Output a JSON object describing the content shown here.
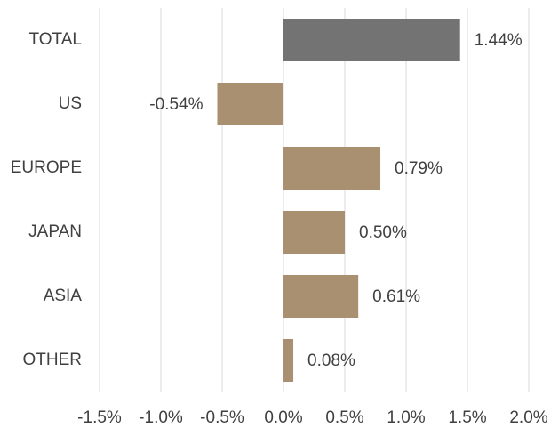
{
  "chart_data": {
    "type": "bar",
    "orientation": "horizontal",
    "categories": [
      "TOTAL",
      "US",
      "EUROPE",
      "JAPAN",
      "ASIA",
      "OTHER"
    ],
    "values": [
      1.44,
      -0.54,
      0.79,
      0.5,
      0.61,
      0.08
    ],
    "value_labels": [
      "1.44%",
      "-0.54%",
      "0.79%",
      "0.50%",
      "0.61%",
      "0.08%"
    ],
    "colors": [
      "#737373",
      "#a89070",
      "#a89070",
      "#a89070",
      "#a89070",
      "#a89070"
    ],
    "xlim": [
      -1.5,
      2.0
    ],
    "xticks": [
      {
        "value": -1.5,
        "label": "-1.5%"
      },
      {
        "value": -1.0,
        "label": "-1.0%"
      },
      {
        "value": -0.5,
        "label": "-0.5%"
      },
      {
        "value": 0,
        "label": "0.0%"
      },
      {
        "value": 0.5,
        "label": "0.5%"
      },
      {
        "value": 1.0,
        "label": "1.0%"
      },
      {
        "value": 1.5,
        "label": "1.5%"
      },
      {
        "value": 2.0,
        "label": "2.0%"
      }
    ],
    "grid": true
  }
}
